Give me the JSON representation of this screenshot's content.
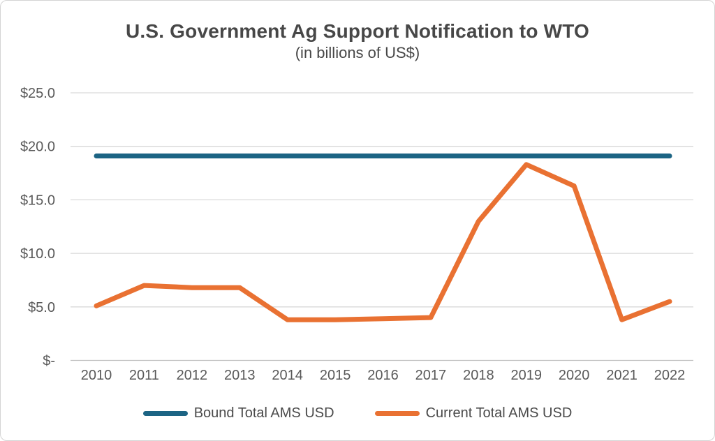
{
  "chart_data": {
    "type": "line",
    "title": "U.S. Government Ag Support Notification to WTO",
    "subtitle": "(in billions of US$)",
    "categories": [
      "2010",
      "2011",
      "2012",
      "2013",
      "2014",
      "2015",
      "2016",
      "2017",
      "2018",
      "2019",
      "2020",
      "2021",
      "2022"
    ],
    "series": [
      {
        "name": "Bound Total AMS USD",
        "color": "#1C6484",
        "style": "constant",
        "value": 19.1,
        "values": [
          19.1,
          19.1,
          19.1,
          19.1,
          19.1,
          19.1,
          19.1,
          19.1,
          19.1,
          19.1,
          19.1,
          19.1,
          19.1
        ]
      },
      {
        "name": "Current Total AMS USD",
        "color": "#E97132",
        "style": "line",
        "values": [
          5.1,
          7.0,
          6.8,
          6.8,
          3.8,
          3.8,
          3.9,
          4.0,
          13.0,
          18.3,
          16.3,
          3.8,
          5.5
        ]
      }
    ],
    "y_axis": {
      "ylim": [
        0,
        25
      ],
      "tick_step": 5,
      "ticks": [
        {
          "label": "$25.0",
          "value": 25
        },
        {
          "label": "$20.0",
          "value": 20
        },
        {
          "label": "$15.0",
          "value": 15
        },
        {
          "label": "$10.0",
          "value": 10
        },
        {
          "label": "$5.0",
          "value": 5
        },
        {
          "label": "$-",
          "value": 0
        }
      ]
    },
    "xlabel": "",
    "ylabel": "",
    "grid": true,
    "gridline_color": "#d9d9d9",
    "baseline_color": "#bfbfbf",
    "legend_position": "bottom"
  }
}
